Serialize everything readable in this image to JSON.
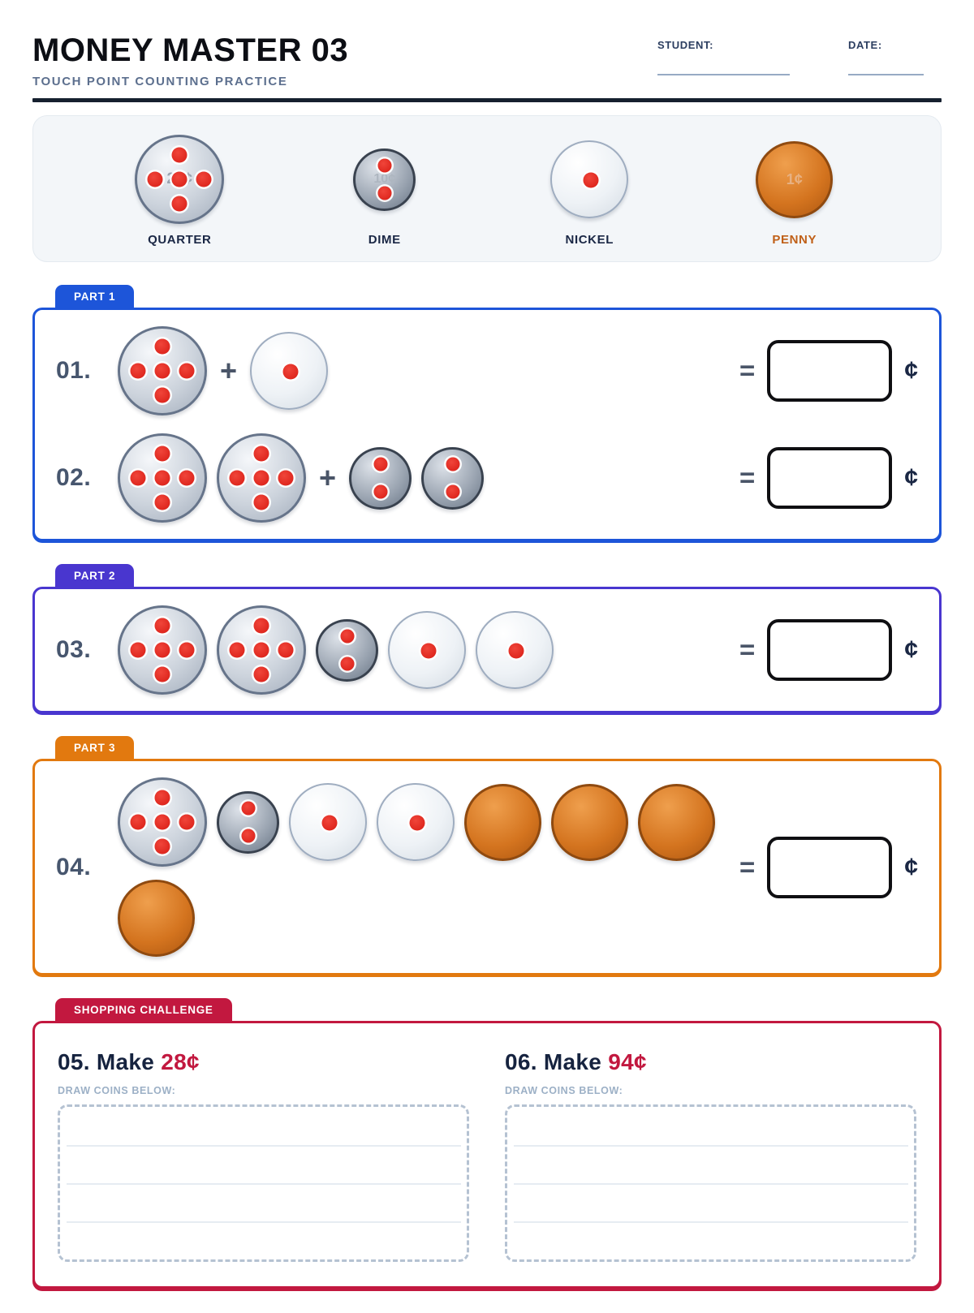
{
  "header": {
    "title": "MONEY MASTER 03",
    "subtitle": "TOUCH POINT COUNTING PRACTICE",
    "student_label": "STUDENT:",
    "date_label": "DATE:"
  },
  "legend": {
    "coins": [
      {
        "type": "quarter",
        "label": "QUARTER",
        "value_text": "25¢"
      },
      {
        "type": "dime",
        "label": "DIME",
        "value_text": "10¢"
      },
      {
        "type": "nickel",
        "label": "NICKEL",
        "value_text": "5¢"
      },
      {
        "type": "penny",
        "label": "PENNY",
        "value_text": "1¢"
      }
    ]
  },
  "symbols": {
    "plus": "+",
    "equals": "=",
    "cent": "¢"
  },
  "sections": [
    {
      "id": "part1",
      "tab": "PART 1",
      "color": "#1d55d9",
      "problems": [
        {
          "number": "01.",
          "coins": [
            "quarter",
            "+",
            "nickel"
          ]
        },
        {
          "number": "02.",
          "coins": [
            "quarter",
            "quarter",
            "+",
            "dime",
            "dime"
          ]
        }
      ]
    },
    {
      "id": "part2",
      "tab": "PART 2",
      "color": "#4936cf",
      "problems": [
        {
          "number": "03.",
          "coins": [
            "quarter",
            "quarter",
            "dime",
            "nickel",
            "nickel"
          ]
        }
      ]
    },
    {
      "id": "part3",
      "tab": "PART 3",
      "color": "#e2790f",
      "problems": [
        {
          "number": "04.",
          "coins": [
            "quarter",
            "dime",
            "nickel",
            "nickel",
            "penny",
            "penny",
            "penny",
            "penny"
          ]
        }
      ]
    }
  ],
  "challenge": {
    "tab": "SHOPPING CHALLENGE",
    "color": "#c2183f",
    "items": [
      {
        "number": "05.",
        "make_label": "Make",
        "amount": "28¢",
        "draw_label": "DRAW COINS BELOW:"
      },
      {
        "number": "06.",
        "make_label": "Make",
        "amount": "94¢",
        "draw_label": "DRAW COINS BELOW:"
      }
    ]
  },
  "colors": {
    "touch_dot": "#d81c14",
    "penny_label": "#c06018",
    "part1": "#1d55d9",
    "part2": "#4936cf",
    "part3": "#e2790f",
    "challenge": "#c2183f",
    "header_rule": "#16202f"
  }
}
